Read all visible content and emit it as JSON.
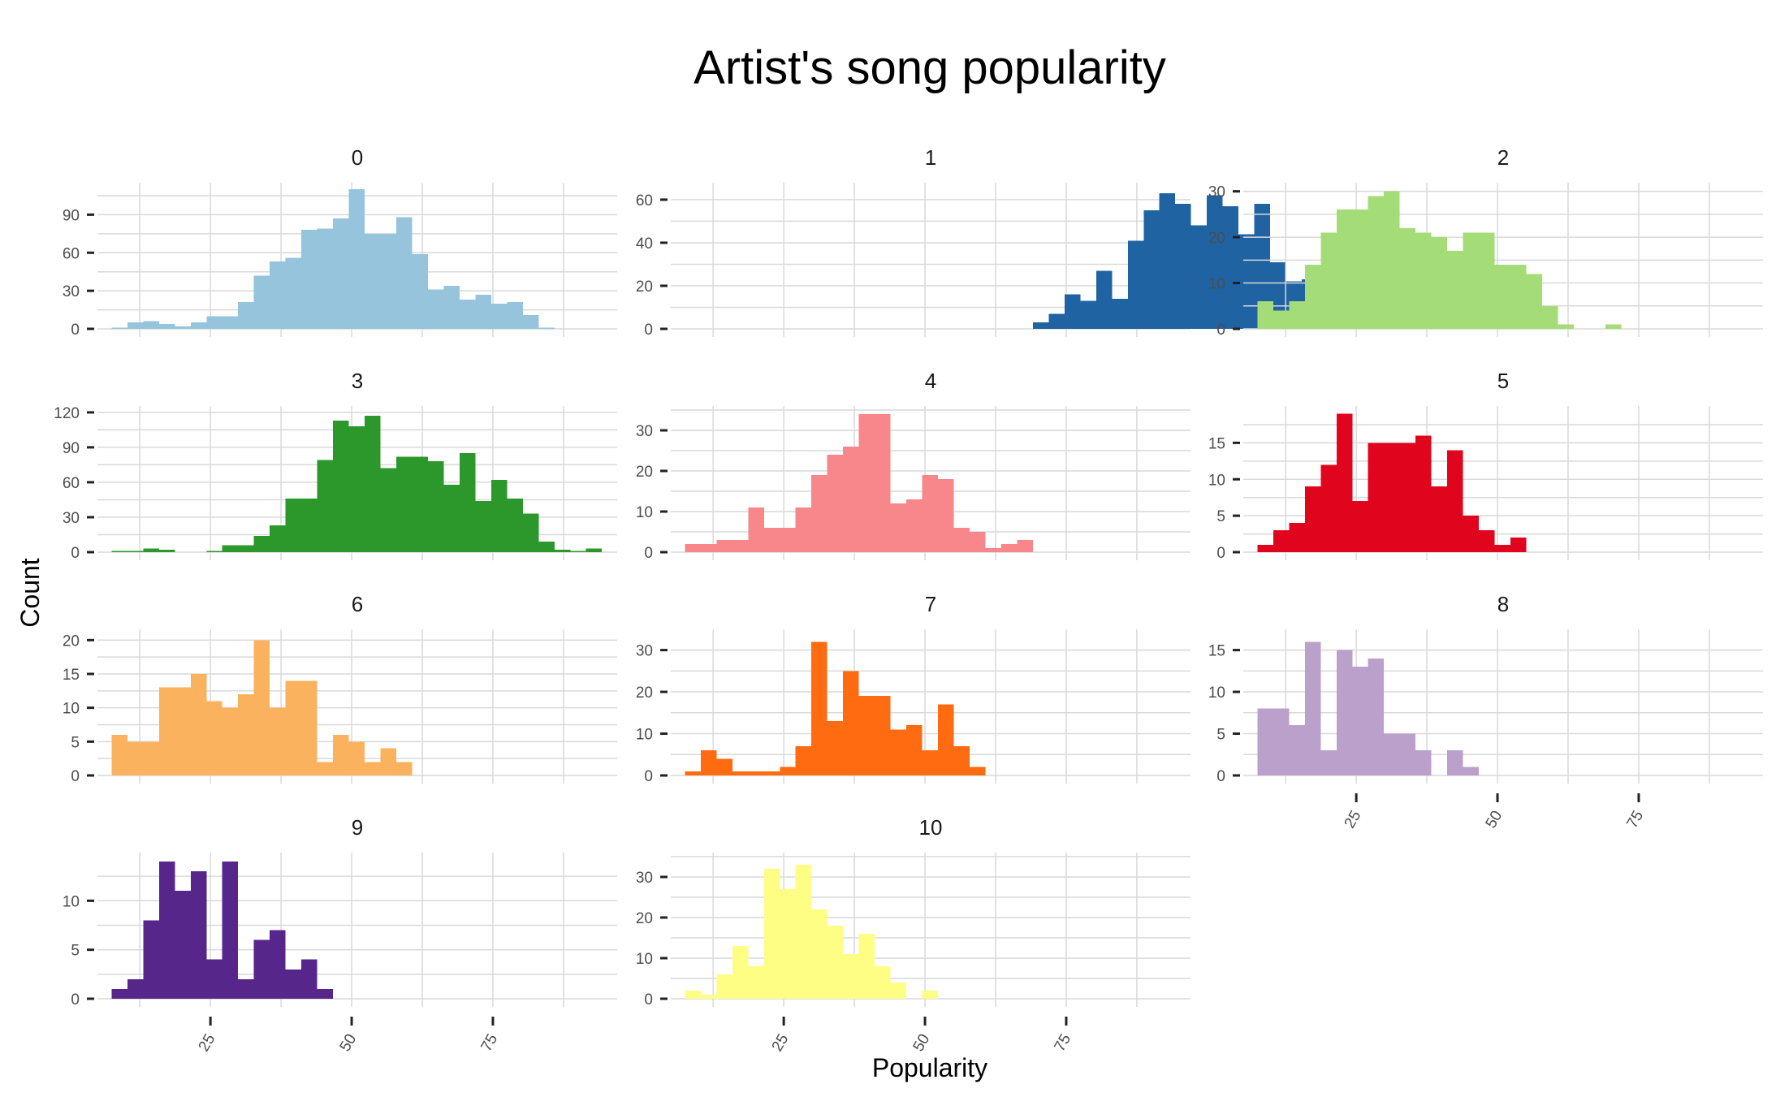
{
  "chart_data": {
    "type": "bar",
    "title": "Artist's song popularity",
    "xlabel": "Popularity",
    "ylabel": "Count",
    "xlim": [
      5,
      97
    ],
    "x_ticks": [
      "25",
      "50",
      "75"
    ],
    "bin_width": 2.8,
    "bin_start": 7.5,
    "grid": true,
    "facets": [
      {
        "label": "0",
        "color": "#95c4dc",
        "ylim": [
          0,
          112
        ],
        "y_ticks": [
          "0",
          "30",
          "60",
          "90"
        ],
        "values": [
          1,
          5,
          6,
          4,
          2,
          5,
          10,
          10,
          21,
          42,
          53,
          56,
          78,
          79,
          87,
          110,
          75,
          75,
          88,
          59,
          31,
          34,
          23,
          27,
          20,
          21,
          11,
          1
        ]
      },
      {
        "label": "1",
        "color": "#1f63a3",
        "ylim": [
          0,
          66
        ],
        "y_ticks": [
          "0",
          "20",
          "40",
          "60"
        ],
        "values": [
          0,
          0,
          0,
          0,
          0,
          0,
          0,
          0,
          0,
          0,
          0,
          0,
          0,
          0,
          0,
          0,
          0,
          0,
          0,
          0,
          0,
          0,
          3,
          7,
          16,
          13,
          27,
          14,
          41,
          55,
          63,
          58,
          48,
          62,
          57,
          44,
          58,
          31,
          22,
          23,
          6,
          6,
          5,
          0,
          1,
          1
        ]
      },
      {
        "label": "2",
        "color": "#a4dc78",
        "ylim": [
          0,
          31
        ],
        "y_ticks": [
          "0",
          "10",
          "20",
          "30"
        ],
        "values": [
          6,
          4,
          6,
          14,
          21,
          26,
          26,
          29,
          30,
          22,
          21,
          20,
          17,
          21,
          21,
          14,
          14,
          12,
          5,
          1,
          0,
          0,
          1
        ]
      },
      {
        "label": "3",
        "color": "#2c982c",
        "ylim": [
          0,
          122
        ],
        "y_ticks": [
          "0",
          "30",
          "60",
          "90",
          "120"
        ],
        "values": [
          1,
          1,
          3,
          2,
          0,
          0,
          1,
          6,
          6,
          14,
          23,
          46,
          46,
          79,
          113,
          108,
          117,
          72,
          82,
          82,
          78,
          58,
          85,
          44,
          62,
          46,
          33,
          9,
          2,
          1,
          3
        ]
      },
      {
        "label": "4",
        "color": "#f7878a",
        "ylim": [
          0,
          35
        ],
        "y_ticks": [
          "0",
          "10",
          "20",
          "30"
        ],
        "values": [
          2,
          2,
          3,
          3,
          11,
          6,
          6,
          11,
          19,
          24,
          26,
          34,
          34,
          12,
          13,
          19,
          18,
          6,
          5,
          1,
          2,
          3
        ]
      },
      {
        "label": "5",
        "color": "#e0051c",
        "ylim": [
          0,
          19.5
        ],
        "y_ticks": [
          "0",
          "5",
          "10",
          "15"
        ],
        "values": [
          1,
          3,
          4,
          9,
          12,
          19,
          7,
          15,
          15,
          15,
          16,
          9,
          14,
          5,
          3,
          1,
          2
        ]
      },
      {
        "label": "6",
        "color": "#fbb25e",
        "ylim": [
          0,
          21
        ],
        "y_ticks": [
          "0",
          "5",
          "10",
          "15",
          "20"
        ],
        "values": [
          6,
          5,
          5,
          13,
          13,
          15,
          11,
          10,
          12,
          20,
          10,
          14,
          14,
          2,
          6,
          5,
          2,
          4,
          2
        ]
      },
      {
        "label": "7",
        "color": "#fe6b10",
        "ylim": [
          0,
          34
        ],
        "y_ticks": [
          "0",
          "10",
          "20",
          "30"
        ],
        "values": [
          1,
          6,
          4,
          1,
          1,
          1,
          2,
          7,
          32,
          13,
          25,
          19,
          19,
          11,
          12,
          6,
          17,
          7,
          2
        ]
      },
      {
        "label": "8",
        "color": "#bca0cc",
        "ylim": [
          0,
          17
        ],
        "y_ticks": [
          "0",
          "5",
          "10",
          "15"
        ],
        "values": [
          8,
          8,
          6,
          16,
          3,
          15,
          13,
          14,
          5,
          5,
          3,
          0,
          3,
          1
        ]
      },
      {
        "label": "9",
        "color": "#56268a",
        "ylim": [
          0,
          14.5
        ],
        "y_ticks": [
          "0",
          "5",
          "10"
        ],
        "values": [
          1,
          2,
          8,
          14,
          11,
          13,
          4,
          14,
          2,
          6,
          7,
          3,
          4,
          1
        ]
      },
      {
        "label": "10",
        "color": "#fefe84",
        "ylim": [
          0,
          35
        ],
        "y_ticks": [
          "0",
          "10",
          "20",
          "30"
        ],
        "values": [
          2,
          1,
          6,
          13,
          8,
          32,
          27,
          33,
          22,
          18,
          11,
          16,
          8,
          4,
          0,
          2
        ]
      }
    ]
  }
}
